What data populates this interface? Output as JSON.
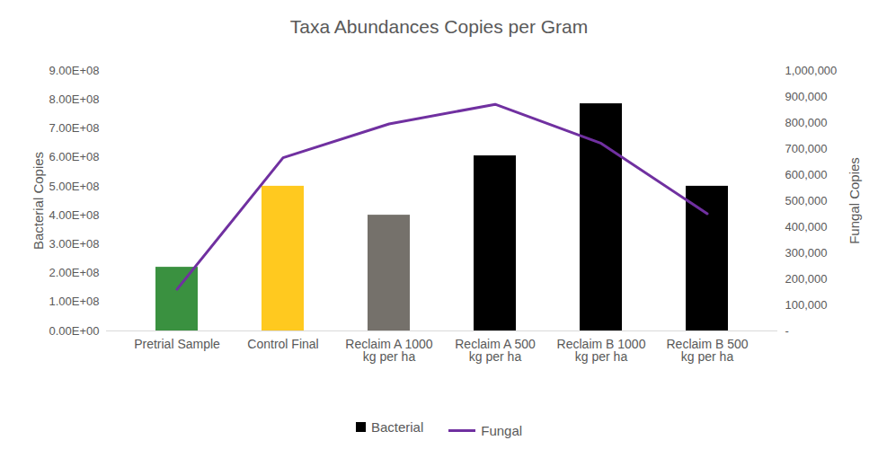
{
  "chart_data": {
    "type": "bar",
    "title": "Taxa Abundances Copies per Gram",
    "categories": [
      "Pretrial Sample",
      "Control Final",
      "Reclaim A 1000 kg per ha",
      "Reclaim A 500 kg per ha",
      "Reclaim B 1000 kg per ha",
      "Reclaim B 500 kg per ha"
    ],
    "series": [
      {
        "name": "Bacterial",
        "type": "bar",
        "color": "#000000",
        "colors": [
          "#3a9140",
          "#ffc91f",
          "#75716b",
          "#000000",
          "#000000",
          "#000000"
        ],
        "values": [
          220000000,
          500000000,
          400000000,
          605000000,
          785000000,
          500000000
        ]
      },
      {
        "name": "Fungal",
        "type": "line",
        "color": "#7030a0",
        "axis": "y2",
        "values": [
          160000,
          665000,
          795000,
          870000,
          720000,
          450000
        ]
      }
    ],
    "y_label": "Bacterial Copies",
    "y2_label": "Fungal Copies",
    "ylim": [
      0,
      900000000
    ],
    "yticks": [
      {
        "value": 0,
        "label": "0.00E+00"
      },
      {
        "value": 100000000,
        "label": "1.00E+08"
      },
      {
        "value": 200000000,
        "label": "2.00E+08"
      },
      {
        "value": 300000000,
        "label": "3.00E+08"
      },
      {
        "value": 400000000,
        "label": "4.00E+08"
      },
      {
        "value": 500000000,
        "label": "5.00E+08"
      },
      {
        "value": 600000000,
        "label": "6.00E+08"
      },
      {
        "value": 700000000,
        "label": "7.00E+08"
      },
      {
        "value": 800000000,
        "label": "8.00E+08"
      },
      {
        "value": 900000000,
        "label": "9.00E+08"
      }
    ],
    "y2lim": [
      0,
      1000000
    ],
    "y2ticks": [
      {
        "value": 0,
        "label": "-"
      },
      {
        "value": 100000,
        "label": "100,000"
      },
      {
        "value": 200000,
        "label": "200,000"
      },
      {
        "value": 300000,
        "label": "300,000"
      },
      {
        "value": 400000,
        "label": "400,000"
      },
      {
        "value": 500000,
        "label": "500,000"
      },
      {
        "value": 600000,
        "label": "600,000"
      },
      {
        "value": 700000,
        "label": "700,000"
      },
      {
        "value": 800000,
        "label": "800,000"
      },
      {
        "value": 900000,
        "label": "900,000"
      },
      {
        "value": 1000000,
        "label": "1,000,000"
      }
    ],
    "grid": false,
    "legend": "bottom"
  }
}
